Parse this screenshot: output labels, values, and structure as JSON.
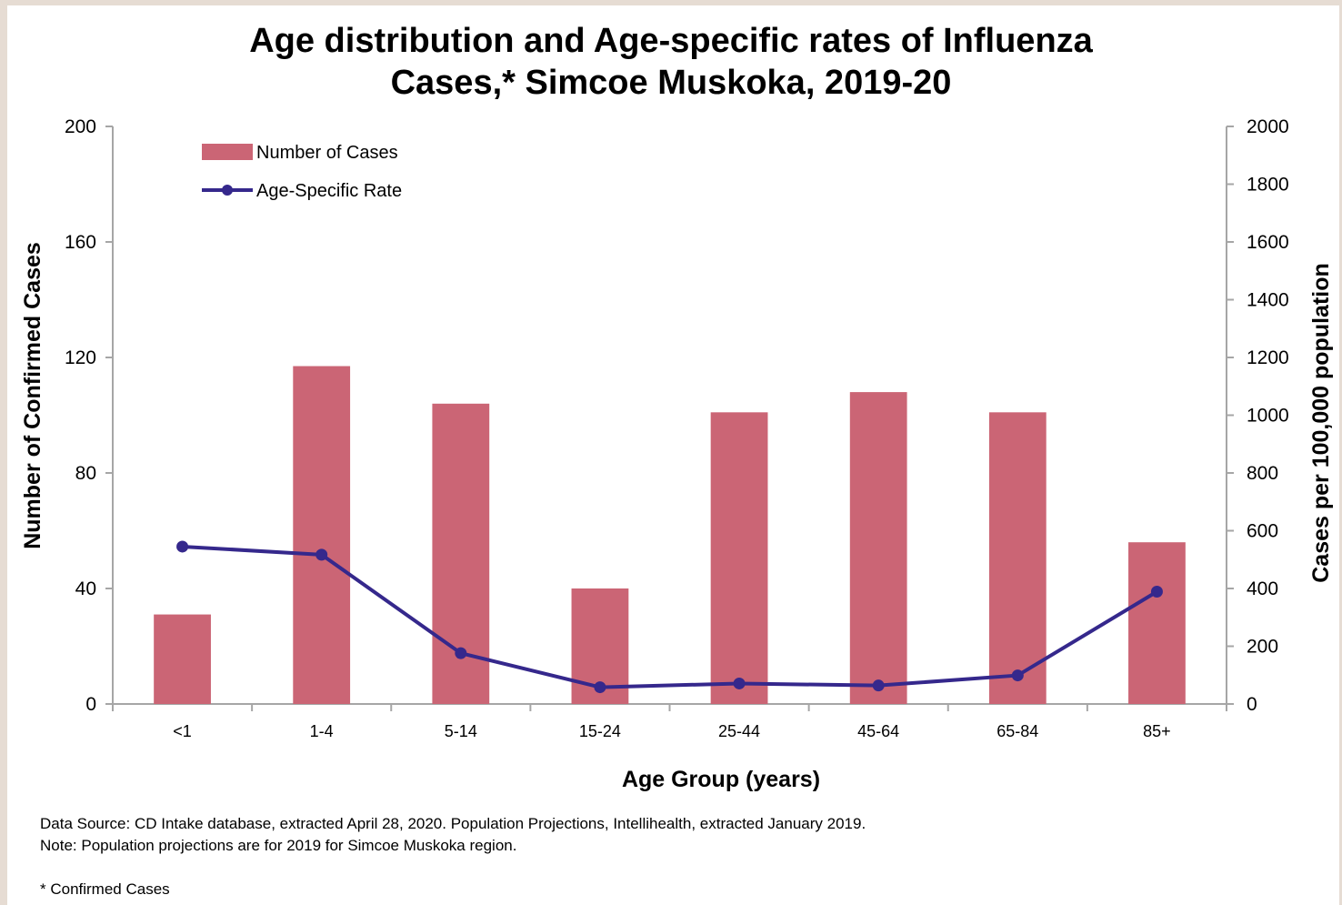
{
  "title_line1": "Age distribution and Age-specific rates of Influenza",
  "title_line2": "Cases,* Simcoe Muskoka, 2019-20",
  "notes": {
    "source": "Data Source:  CD Intake database, extracted April 28, 2020. Population Projections, Intellihealth, extracted January 2019.",
    "note": "Note: Population projections are for 2019 for Simcoe Muskoka region.",
    "footnote": "* Confirmed Cases"
  },
  "colors": {
    "bar": "#cb6575",
    "line": "#35288c",
    "axis": "#a6a6a6"
  },
  "chart_data": {
    "type": "bar",
    "categories": [
      "<1",
      "1-4",
      "5-14",
      "15-24",
      "25-44",
      "45-64",
      "65-84",
      "85+"
    ],
    "series": [
      {
        "name": "Number of Cases",
        "type": "bar",
        "axis": "left",
        "values": [
          31,
          117,
          104,
          40,
          101,
          108,
          101,
          56
        ]
      },
      {
        "name": "Age-Specific Rate",
        "type": "line",
        "axis": "right",
        "values": [
          545,
          517,
          176,
          58,
          71,
          64,
          99,
          389
        ]
      }
    ],
    "xlabel": "Age Group (years)",
    "ylabel": "Number of Confirmed Cases",
    "y2label": "Cases per 100,000 population",
    "ylim": [
      0,
      200
    ],
    "y2lim": [
      0,
      2000
    ],
    "yticks": [
      "0",
      "40",
      "80",
      "120",
      "160",
      "200"
    ],
    "y2ticks": [
      "0",
      "200",
      "400",
      "600",
      "800",
      "1000",
      "1200",
      "1400",
      "1600",
      "1800",
      "2000"
    ],
    "grid": false,
    "legend": "top-left"
  }
}
